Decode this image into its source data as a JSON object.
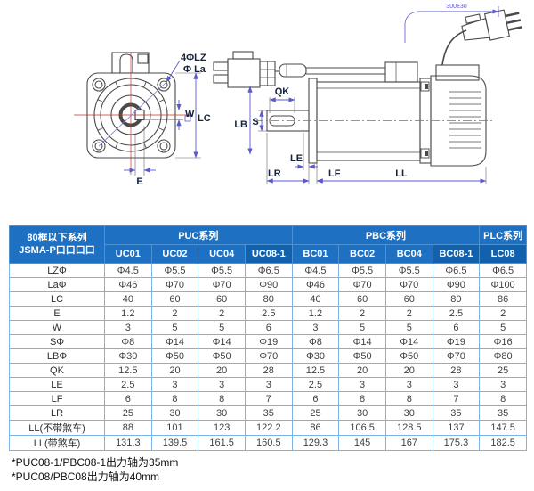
{
  "diagram": {
    "dim_labels": {
      "lz": "4ΦLZ",
      "la": "Φ La",
      "w": "W",
      "lc": "LC",
      "e": "E",
      "s": "S",
      "lb": "LB",
      "qk": "QK",
      "le": "LE",
      "lr": "LR",
      "lf": "LF",
      "ll": "LL",
      "cable": "300±30"
    }
  },
  "table": {
    "corner_header": {
      "line1": "80框以下系列",
      "line2": "JSMA-P口口口口"
    },
    "groups": [
      {
        "label": "PUC系列",
        "span": 4
      },
      {
        "label": "PBC系列",
        "span": 4
      },
      {
        "label": "PLC系列",
        "span": 1
      }
    ],
    "columns": [
      "UC01",
      "UC02",
      "UC04",
      "UC08-1",
      "BC01",
      "BC02",
      "BC04",
      "BC08-1",
      "LC08"
    ],
    "highlight_columns": [
      3,
      7,
      8
    ],
    "rows": [
      {
        "label": "LZΦ",
        "values": [
          "Φ4.5",
          "Φ5.5",
          "Φ5.5",
          "Φ6.5",
          "Φ4.5",
          "Φ5.5",
          "Φ5.5",
          "Φ6.5",
          "Φ6.5"
        ]
      },
      {
        "label": "LaΦ",
        "values": [
          "Φ46",
          "Φ70",
          "Φ70",
          "Φ90",
          "Φ46",
          "Φ70",
          "Φ70",
          "Φ90",
          "Φ100"
        ]
      },
      {
        "label": "LC",
        "values": [
          "40",
          "60",
          "60",
          "80",
          "40",
          "60",
          "60",
          "80",
          "86"
        ]
      },
      {
        "label": "E",
        "values": [
          "1.2",
          "2",
          "2",
          "2.5",
          "1.2",
          "2",
          "2",
          "2.5",
          "2"
        ]
      },
      {
        "label": "W",
        "values": [
          "3",
          "5",
          "5",
          "6",
          "3",
          "5",
          "5",
          "6",
          "5"
        ]
      },
      {
        "label": "SΦ",
        "values": [
          "Φ8",
          "Φ14",
          "Φ14",
          "Φ19",
          "Φ8",
          "Φ14",
          "Φ14",
          "Φ19",
          "Φ16"
        ]
      },
      {
        "label": "LBΦ",
        "values": [
          "Φ30",
          "Φ50",
          "Φ50",
          "Φ70",
          "Φ30",
          "Φ50",
          "Φ50",
          "Φ70",
          "Φ80"
        ]
      },
      {
        "label": "QK",
        "values": [
          "12.5",
          "20",
          "20",
          "28",
          "12.5",
          "20",
          "20",
          "28",
          "25"
        ]
      },
      {
        "label": "LE",
        "values": [
          "2.5",
          "3",
          "3",
          "3",
          "2.5",
          "3",
          "3",
          "3",
          "3"
        ]
      },
      {
        "label": "LF",
        "values": [
          "6",
          "8",
          "8",
          "7",
          "6",
          "8",
          "8",
          "7",
          "8"
        ]
      },
      {
        "label": "LR",
        "values": [
          "25",
          "30",
          "30",
          "35",
          "25",
          "30",
          "30",
          "35",
          "35"
        ]
      },
      {
        "label": "LL(不带煞车)",
        "values": [
          "88",
          "101",
          "123",
          "122.2",
          "86",
          "106.5",
          "128.5",
          "137",
          "147.5"
        ]
      },
      {
        "label": "LL(带煞车)",
        "values": [
          "131.3",
          "139.5",
          "161.5",
          "160.5",
          "129.3",
          "145",
          "167",
          "175.3",
          "182.5"
        ]
      }
    ]
  },
  "notes": [
    "*PUC08-1/PBC08-1出力轴为35mm",
    "*PUC08/PBC08出力轴为40mm"
  ],
  "colors": {
    "header_bg": "#1e71c2",
    "header_bg_dark": "#1161ad",
    "table_border": "#7fb2e3",
    "dim_line": "#5a5acc",
    "center_line_red": "#c0392b",
    "outline": "#4a4a4a"
  }
}
